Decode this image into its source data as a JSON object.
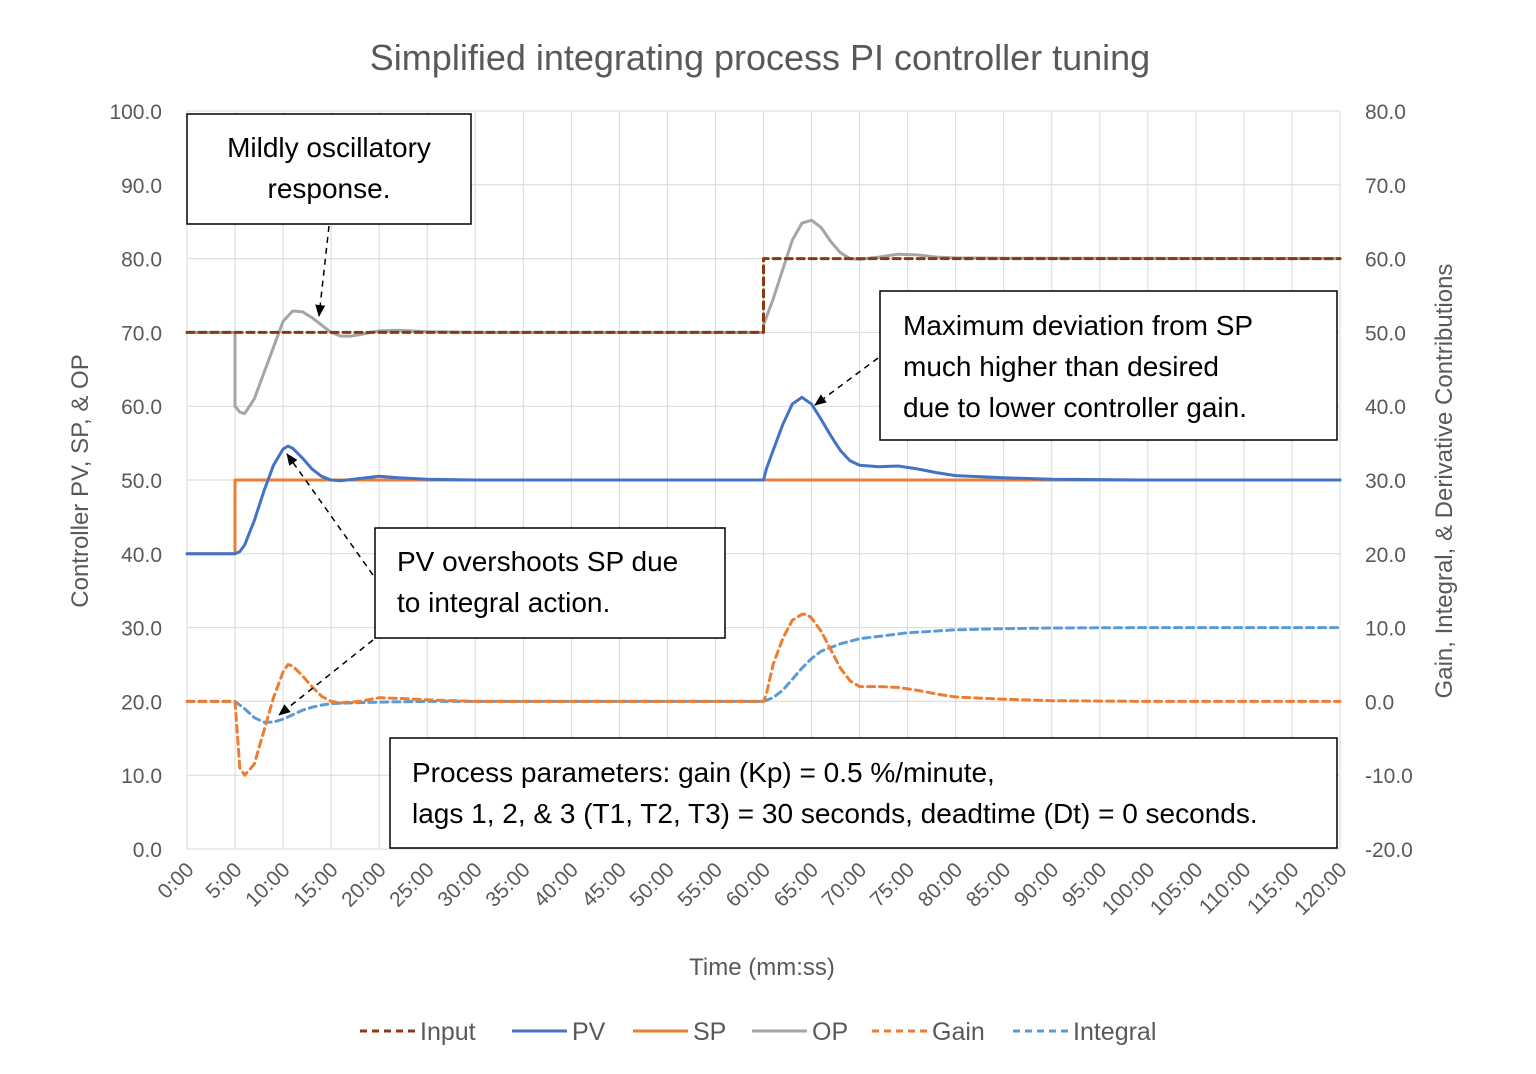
{
  "chart_data": {
    "type": "line",
    "title": "Simplified integrating process PI controller tuning",
    "xlabel": "Time (mm:ss)",
    "ylabel_left": "Controller PV, SP, & OP",
    "ylabel_right": "Gain, Integral, & Derivative Contributions",
    "xlim": [
      0,
      120
    ],
    "ylim_left": [
      0,
      100
    ],
    "ylim_right": [
      -20,
      80
    ],
    "grid": true,
    "legend_position": "bottom",
    "x_ticks": [
      0,
      5,
      10,
      15,
      20,
      25,
      30,
      35,
      40,
      45,
      50,
      55,
      60,
      65,
      70,
      75,
      80,
      85,
      90,
      95,
      100,
      105,
      110,
      115,
      120
    ],
    "x_tick_labels": [
      "0:00",
      "5:00",
      "10:00",
      "15:00",
      "20:00",
      "25:00",
      "30:00",
      "35:00",
      "40:00",
      "45:00",
      "50:00",
      "55:00",
      "60:00",
      "65:00",
      "70:00",
      "75:00",
      "80:00",
      "85:00",
      "90:00",
      "95:00",
      "100:00",
      "105:00",
      "110:00",
      "115:00",
      "120:00"
    ],
    "y_left_ticks": [
      0,
      10,
      20,
      30,
      40,
      50,
      60,
      70,
      80,
      90,
      100
    ],
    "y_left_tick_labels": [
      "0.0",
      "10.0",
      "20.0",
      "30.0",
      "40.0",
      "50.0",
      "60.0",
      "70.0",
      "80.0",
      "90.0",
      "100.0"
    ],
    "y_right_ticks": [
      -20,
      -10,
      0,
      10,
      20,
      30,
      40,
      50,
      60,
      70,
      80
    ],
    "y_right_tick_labels": [
      "-20.0",
      "-10.0",
      "0.0",
      "10.0",
      "20.0",
      "30.0",
      "40.0",
      "50.0",
      "60.0",
      "70.0",
      "80.0"
    ],
    "series": [
      {
        "name": "Input",
        "axis": "left",
        "color": "#8B3A0F",
        "dash": true,
        "x": [
          0,
          5,
          5,
          60,
          60,
          120
        ],
        "y": [
          70,
          70,
          70,
          70,
          80,
          80
        ]
      },
      {
        "name": "PV",
        "axis": "left",
        "color": "#4472C4",
        "dash": false,
        "x": [
          0,
          5,
          5.5,
          6,
          7,
          8,
          9,
          10,
          10.5,
          11,
          12,
          13,
          14,
          15,
          16,
          18,
          20,
          22,
          25,
          30,
          60,
          60.3,
          61,
          62,
          63,
          64,
          65,
          66,
          67,
          68,
          69,
          70,
          72,
          74,
          76,
          78,
          80,
          85,
          90,
          95,
          100,
          120
        ],
        "y": [
          40,
          40,
          40.3,
          41.2,
          44.5,
          48.5,
          52,
          54.2,
          54.6,
          54.3,
          53,
          51.5,
          50.5,
          50,
          49.9,
          50.2,
          50.5,
          50.3,
          50.1,
          50,
          50,
          51.5,
          54,
          57.5,
          60.3,
          61.2,
          60.3,
          58.2,
          56,
          54,
          52.6,
          52,
          51.8,
          51.9,
          51.5,
          51,
          50.6,
          50.3,
          50.1,
          50.05,
          50,
          50
        ]
      },
      {
        "name": "SP",
        "axis": "left",
        "color": "#ED7D31",
        "dash": false,
        "x": [
          0,
          5,
          5,
          120
        ],
        "y": [
          40,
          40,
          50,
          50
        ]
      },
      {
        "name": "OP",
        "axis": "left",
        "color": "#A5A5A5",
        "dash": false,
        "x": [
          0,
          5,
          5,
          5.5,
          6,
          7,
          8,
          9,
          10,
          11,
          12,
          13,
          14,
          15,
          16,
          17,
          18,
          20,
          22,
          25,
          30,
          60,
          60,
          61,
          62,
          63,
          64,
          65,
          66,
          67,
          68,
          69,
          70,
          72,
          74,
          76,
          78,
          80,
          85,
          120
        ],
        "y": [
          70,
          70,
          60,
          59.2,
          59,
          61,
          64.5,
          68,
          71.5,
          72.9,
          72.8,
          72,
          71,
          70,
          69.5,
          69.5,
          69.7,
          70.2,
          70.3,
          70.1,
          70,
          70,
          71,
          74.5,
          78.5,
          82.5,
          84.8,
          85.2,
          84.2,
          82.3,
          80.8,
          80,
          79.9,
          80.2,
          80.6,
          80.5,
          80.2,
          80.1,
          80.05,
          80
        ]
      },
      {
        "name": "Gain",
        "axis": "right",
        "color": "#ED7D31",
        "dash": true,
        "x": [
          0,
          5,
          5,
          5.5,
          6,
          7,
          8,
          9,
          10,
          10.5,
          11,
          12,
          13,
          14,
          15,
          16,
          18,
          20,
          22,
          25,
          30,
          60,
          60.3,
          61,
          62,
          63,
          64,
          64.5,
          65,
          66,
          67,
          68,
          69,
          70,
          72,
          74,
          76,
          78,
          80,
          85,
          90,
          100,
          120
        ],
        "y": [
          0,
          0,
          0,
          -9,
          -10,
          -8.5,
          -4,
          0.5,
          4,
          5,
          4.8,
          3.5,
          2,
          0.7,
          0,
          -0.2,
          0,
          0.5,
          0.4,
          0.2,
          0,
          0,
          1,
          5,
          8.5,
          11,
          11.8,
          11.8,
          11.3,
          9.5,
          7,
          4.5,
          2.8,
          2,
          2,
          1.9,
          1.5,
          1,
          0.6,
          0.3,
          0.1,
          0,
          0
        ]
      },
      {
        "name": "Integral",
        "axis": "right",
        "color": "#5B9BD5",
        "dash": true,
        "x": [
          0,
          5,
          6,
          7,
          8,
          9,
          10,
          11,
          12,
          13,
          14,
          15,
          17,
          20,
          25,
          30,
          60,
          61,
          62,
          63,
          64,
          65,
          66,
          68,
          70,
          75,
          80,
          85,
          90,
          100,
          120
        ],
        "y": [
          0,
          0,
          -1,
          -2.2,
          -2.8,
          -2.8,
          -2.4,
          -1.8,
          -1.2,
          -0.8,
          -0.5,
          -0.3,
          -0.2,
          -0.1,
          0,
          0,
          0,
          0.5,
          1.5,
          3,
          4.5,
          5.8,
          6.8,
          7.8,
          8.5,
          9.3,
          9.7,
          9.85,
          9.95,
          10,
          10
        ]
      }
    ],
    "annotations": [
      {
        "lines": [
          "Mildly oscillatory",
          "response."
        ]
      },
      {
        "lines": [
          "Maximum deviation from SP",
          "much higher than desired",
          "due to lower controller gain."
        ]
      },
      {
        "lines": [
          "PV overshoots SP due",
          "to integral action."
        ]
      },
      {
        "lines": [
          "Process parameters:  gain (Kp) = 0.5 %/minute,",
          "lags 1, 2, & 3 (T1, T2, T3) = 30 seconds, deadtime (Dt) = 0 seconds."
        ]
      }
    ]
  }
}
